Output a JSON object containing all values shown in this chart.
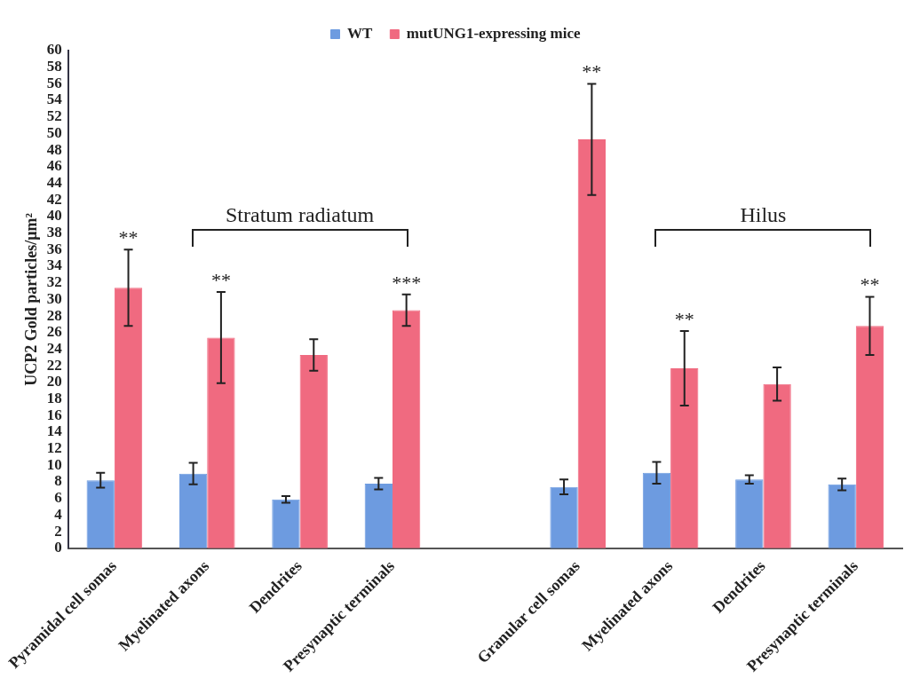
{
  "chart_data": {
    "type": "bar",
    "ylabel": "UCP2 Gold particles/μm²",
    "categories": [
      "Pyramidal cell somas",
      "Myelinated axons",
      "Dendrites",
      "Presynaptic terminals",
      null,
      "Granular cell somas",
      "Myelinated axons",
      "Dendrites",
      "Presynaptic terminals"
    ],
    "series": [
      {
        "name": "WT",
        "color": "#6d9be0",
        "values": [
          8.2,
          9.0,
          5.9,
          7.8,
          null,
          7.4,
          9.1,
          8.3,
          7.7
        ],
        "errors": [
          0.9,
          1.3,
          0.4,
          0.7,
          null,
          0.9,
          1.3,
          0.5,
          0.7
        ]
      },
      {
        "name": "mutUNG1-expressing mice",
        "color": "#f06a80",
        "values": [
          31.4,
          25.4,
          23.3,
          28.7,
          null,
          49.3,
          21.7,
          19.8,
          26.8
        ],
        "errors": [
          4.6,
          5.5,
          1.9,
          1.9,
          null,
          6.7,
          4.5,
          2.0,
          3.5
        ]
      }
    ],
    "ylim": [
      0,
      60
    ],
    "yticks": [
      0,
      2,
      4,
      6,
      8,
      10,
      12,
      14,
      16,
      18,
      20,
      22,
      24,
      26,
      28,
      30,
      32,
      34,
      36,
      38,
      40,
      42,
      44,
      46,
      48,
      50,
      52,
      54,
      56,
      58,
      60
    ],
    "grid": false,
    "legend": "top",
    "annotations": [
      "**",
      "**",
      "***",
      "**",
      "**",
      "**",
      "Stratum radiatum",
      "Hilus"
    ]
  }
}
